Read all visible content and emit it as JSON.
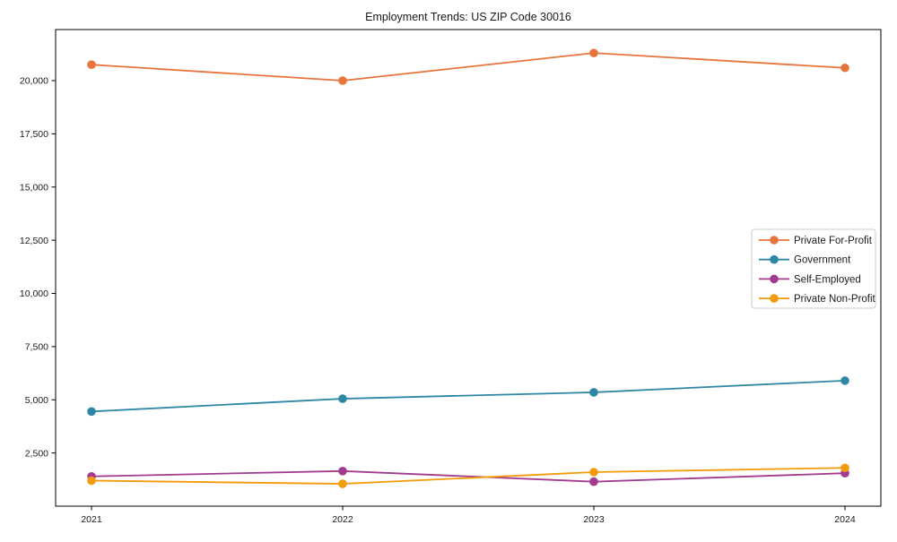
{
  "figure": {
    "title": "Employment Trends: US ZIP Code 30016"
  },
  "chart_data": {
    "type": "line",
    "title": "Employment Trends: US ZIP Code 30016",
    "x": [
      2021,
      2022,
      2023,
      2024
    ],
    "xlabel": "",
    "ylabel": "",
    "ylim": [
      0,
      22400
    ],
    "yticks": [
      2500,
      5000,
      7500,
      10000,
      12500,
      15000,
      17500,
      20000
    ],
    "grid": false,
    "legend_position": "center-right",
    "marker": "circle",
    "axis_color": "#000000",
    "background": "#ffffff",
    "series": [
      {
        "name": "Private For-Profit",
        "color": "#e8743b",
        "values": [
          20750,
          20000,
          21300,
          20600
        ]
      },
      {
        "name": "Government",
        "color": "#2e87a5",
        "values": [
          4450,
          5050,
          5350,
          5900
        ]
      },
      {
        "name": "Self-Employed",
        "color": "#a23b8f",
        "values": [
          1400,
          1650,
          1150,
          1550
        ]
      },
      {
        "name": "Private Non-Profit",
        "color": "#f39b0a",
        "values": [
          1200,
          1050,
          1600,
          1800
        ]
      }
    ]
  }
}
